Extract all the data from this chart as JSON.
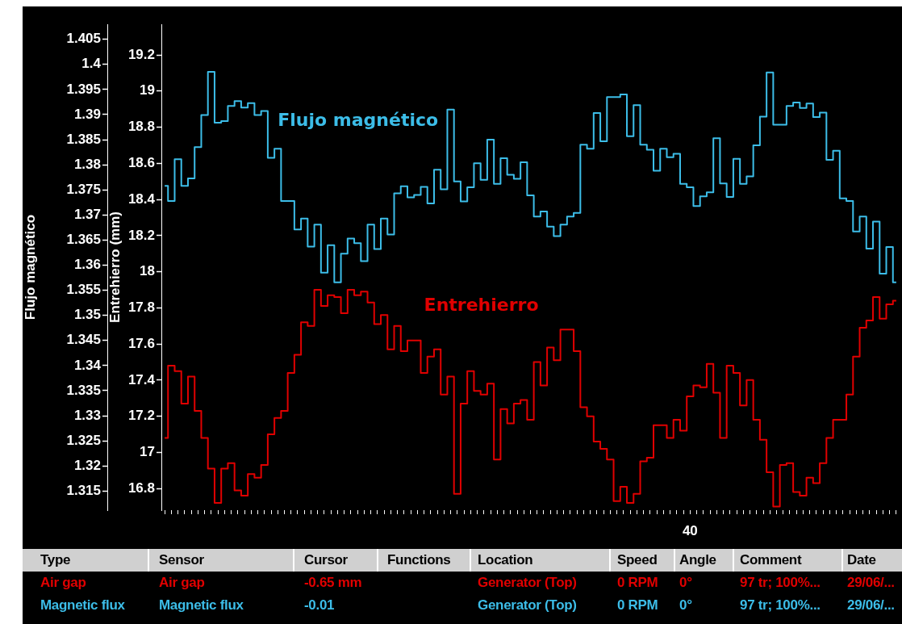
{
  "chart_data": {
    "type": "step",
    "ylabel": "Flujo magnético",
    "y2label": "Entrehierro (mm)",
    "categories": [
      null,
      null,
      null,
      null,
      null,
      null,
      null,
      null,
      null,
      null,
      null,
      null,
      null,
      null,
      null,
      null,
      null,
      null,
      null,
      null,
      null,
      null,
      null,
      null,
      null,
      null,
      null,
      null,
      null,
      null,
      null,
      null,
      null,
      null,
      null,
      null,
      null,
      null,
      null,
      null,
      null,
      null,
      null,
      null,
      null,
      null,
      null,
      null,
      null,
      null,
      null,
      null,
      null,
      null,
      null,
      null,
      null,
      null,
      null,
      null,
      null,
      null,
      null,
      null,
      null,
      null,
      null,
      null,
      null,
      null,
      null,
      null,
      null,
      null,
      null,
      null,
      null,
      null,
      null,
      null,
      null,
      null,
      null,
      null,
      null,
      null,
      null,
      null,
      null,
      null,
      null,
      null,
      null,
      null,
      null,
      null,
      null,
      null,
      null,
      null,
      null,
      null,
      null,
      null,
      null,
      null,
      null,
      null,
      null,
      null,
      null
    ],
    "series": [
      {
        "name": "Entrehierro",
        "color": "#e00000",
        "axis": "y2",
        "values": [
          17.08,
          17.48,
          17.45,
          17.27,
          17.42,
          17.23,
          17.08,
          16.91,
          16.72,
          16.91,
          16.94,
          16.79,
          16.76,
          16.88,
          16.86,
          16.93,
          17.1,
          17.19,
          17.23,
          17.44,
          17.54,
          17.72,
          17.7,
          17.9,
          17.81,
          17.87,
          17.86,
          17.77,
          17.9,
          17.87,
          17.89,
          17.83,
          17.71,
          17.76,
          17.57,
          17.7,
          17.56,
          17.62,
          17.62,
          17.44,
          17.53,
          17.57,
          17.32,
          17.42,
          16.77,
          17.27,
          17.45,
          17.34,
          17.32,
          17.38,
          16.96,
          17.24,
          17.16,
          17.27,
          17.29,
          17.18,
          17.5,
          17.37,
          17.58,
          17.51,
          17.68,
          17.68,
          17.56,
          17.25,
          17.2,
          17.06,
          17.02,
          16.96,
          16.73,
          16.81,
          16.72,
          16.77,
          16.95,
          16.97,
          17.15,
          17.15,
          17.08,
          17.18,
          17.12,
          17.31,
          17.37,
          17.36,
          17.49,
          17.33,
          17.08,
          17.48,
          17.44,
          17.26,
          17.4,
          17.18,
          17.07,
          16.89,
          16.7,
          16.93,
          16.94,
          16.78,
          16.76,
          16.86,
          16.83,
          16.94,
          17.08,
          17.18,
          17.18,
          17.32,
          17.53,
          17.69,
          17.73,
          17.86,
          17.74,
          17.82,
          17.84
        ]
      },
      {
        "name": "Flujo magnético",
        "color": "#3cbde8",
        "values": [
          1.3758,
          1.3728,
          1.3811,
          1.3758,
          1.3773,
          1.3835,
          1.3899,
          1.3985,
          1.3884,
          1.3887,
          1.3917,
          1.3927,
          1.3914,
          1.3923,
          1.3899,
          1.3907,
          1.3814,
          1.3832,
          1.3728,
          1.3728,
          1.3671,
          1.3693,
          1.3637,
          1.3681,
          1.3585,
          1.364,
          1.3566,
          1.3623,
          1.3653,
          1.3644,
          1.3608,
          1.3681,
          1.3632,
          1.3693,
          1.3661,
          1.3743,
          1.3757,
          1.3735,
          1.374,
          1.3756,
          1.3723,
          1.379,
          1.3751,
          1.391,
          1.3767,
          1.3727,
          1.3755,
          1.3803,
          1.377,
          1.385,
          1.3762,
          1.3813,
          1.378,
          1.3772,
          1.3805,
          1.3739,
          1.3697,
          1.3707,
          1.3677,
          1.3658,
          1.3681,
          1.3697,
          1.3704,
          1.384,
          1.3832,
          1.3903,
          1.3847,
          1.3935,
          1.3935,
          1.394,
          1.3857,
          1.3919,
          1.384,
          1.383,
          1.3788,
          1.3832,
          1.3815,
          1.3822,
          1.3762,
          1.3755,
          1.3718,
          1.3737,
          1.3745,
          1.3853,
          1.3763,
          1.3736,
          1.3812,
          1.3762,
          1.3777,
          1.3839,
          1.3896,
          1.3984,
          1.388,
          1.388,
          1.3917,
          1.3924,
          1.3913,
          1.3922,
          1.3895,
          1.3904,
          1.381,
          1.3828,
          1.3733,
          1.3728,
          1.3667,
          1.3697,
          1.3633,
          1.3687,
          1.3583,
          1.3636,
          1.3566
        ]
      }
    ],
    "ylim": [
      1.3112,
      1.408
    ],
    "yticks": [
      1.315,
      1.32,
      1.325,
      1.33,
      1.335,
      1.34,
      1.345,
      1.35,
      1.355,
      1.36,
      1.365,
      1.37,
      1.375,
      1.38,
      1.385,
      1.39,
      1.395,
      1.4,
      1.405
    ],
    "y2lim": [
      16.68,
      19.37
    ],
    "y2ticks": [
      16.8,
      17,
      17.2,
      17.4,
      17.6,
      17.8,
      18,
      18.2,
      18.4,
      18.6,
      18.8,
      19,
      19.2
    ],
    "annotations": [
      "40",
      "Type",
      "Sensor",
      "Cursor",
      "Functions",
      "Location",
      "Speed",
      "Angle",
      "Comment",
      "Date",
      "Air gap",
      "Air gap",
      "-0.65 mm",
      null,
      "Generator (Top)",
      "0 RPM",
      "0°",
      "97 tr; 100%...",
      "29/06/...",
      "Magnetic flux",
      "Magnetic flux",
      "-0.01",
      null,
      "Generator (Top)",
      "0 RPM",
      "0°",
      "97 tr; 100%...",
      "29/06/..."
    ],
    "grid": false,
    "legend": false
  }
}
